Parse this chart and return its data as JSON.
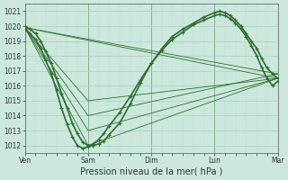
{
  "bg_color": "#cce8dd",
  "grid_major_color": "#aacfbf",
  "grid_minor_color": "#bbddd0",
  "line_color": "#2d6e2d",
  "ylim": [
    1011.5,
    1021.5
  ],
  "xlim": [
    0,
    4.0
  ],
  "yticks": [
    1012,
    1013,
    1014,
    1015,
    1016,
    1017,
    1018,
    1019,
    1020,
    1021
  ],
  "day_labels": [
    "Ven",
    "Sam",
    "Dim",
    "Lun",
    "Mar"
  ],
  "day_positions": [
    0,
    1,
    2,
    3,
    4
  ],
  "xlabel": "Pression niveau de la mer( hPa )",
  "tick_fontsize": 5.5,
  "label_fontsize": 7.0,
  "bold_lines": [
    {
      "x": [
        0.0,
        0.08,
        0.17,
        0.25,
        0.33,
        0.42,
        0.5,
        0.58,
        0.67,
        0.75,
        0.83,
        0.92,
        1.0,
        1.08,
        1.17,
        1.25,
        1.33,
        1.5,
        1.67,
        1.83,
        2.0,
        2.17,
        2.33,
        2.5,
        2.67,
        2.83,
        3.0,
        3.08,
        3.17,
        3.25,
        3.33,
        3.42,
        3.5,
        3.58,
        3.67,
        3.75,
        3.83,
        3.92,
        4.0
      ],
      "y": [
        1020.0,
        1019.8,
        1019.5,
        1019.0,
        1018.3,
        1017.5,
        1016.5,
        1015.5,
        1014.5,
        1013.5,
        1012.8,
        1012.2,
        1012.0,
        1012.0,
        1012.1,
        1012.3,
        1012.7,
        1013.5,
        1014.8,
        1016.2,
        1017.5,
        1018.5,
        1019.3,
        1019.8,
        1020.2,
        1020.6,
        1020.9,
        1021.0,
        1020.9,
        1020.7,
        1020.4,
        1020.0,
        1019.5,
        1019.0,
        1018.5,
        1017.8,
        1017.2,
        1016.8,
        1016.5
      ]
    },
    {
      "x": [
        0.0,
        0.08,
        0.17,
        0.25,
        0.33,
        0.42,
        0.5,
        0.58,
        0.67,
        0.75,
        0.83,
        0.92,
        1.0,
        1.08,
        1.17,
        1.25,
        1.33,
        1.5,
        1.67,
        1.83,
        2.0,
        2.17,
        2.33,
        2.5,
        2.67,
        2.83,
        3.0,
        3.08,
        3.17,
        3.25,
        3.33,
        3.42,
        3.5,
        3.58,
        3.67,
        3.75,
        3.83,
        3.92,
        4.0
      ],
      "y": [
        1019.8,
        1019.5,
        1019.1,
        1018.5,
        1017.7,
        1016.8,
        1015.7,
        1014.5,
        1013.4,
        1012.6,
        1012.0,
        1011.8,
        1011.9,
        1012.1,
        1012.4,
        1012.8,
        1013.3,
        1014.2,
        1015.3,
        1016.4,
        1017.5,
        1018.4,
        1019.1,
        1019.6,
        1020.1,
        1020.4,
        1020.7,
        1020.8,
        1020.7,
        1020.5,
        1020.2,
        1019.8,
        1019.3,
        1018.7,
        1018.0,
        1017.2,
        1016.5,
        1016.0,
        1016.3
      ]
    }
  ],
  "thin_lines": [
    {
      "x": [
        0.0,
        4.0
      ],
      "y": [
        1019.9,
        1016.5
      ]
    },
    {
      "x": [
        0.0,
        4.0
      ],
      "y": [
        1019.9,
        1016.8
      ]
    },
    {
      "x": [
        0.0,
        1.0,
        4.0
      ],
      "y": [
        1019.9,
        1015.0,
        1016.5
      ]
    },
    {
      "x": [
        0.0,
        1.0,
        4.0
      ],
      "y": [
        1019.9,
        1014.0,
        1016.8
      ]
    },
    {
      "x": [
        0.0,
        1.0,
        4.0
      ],
      "y": [
        1019.9,
        1013.0,
        1016.5
      ]
    },
    {
      "x": [
        0.0,
        1.0,
        4.0
      ],
      "y": [
        1019.9,
        1012.0,
        1016.5
      ]
    }
  ]
}
